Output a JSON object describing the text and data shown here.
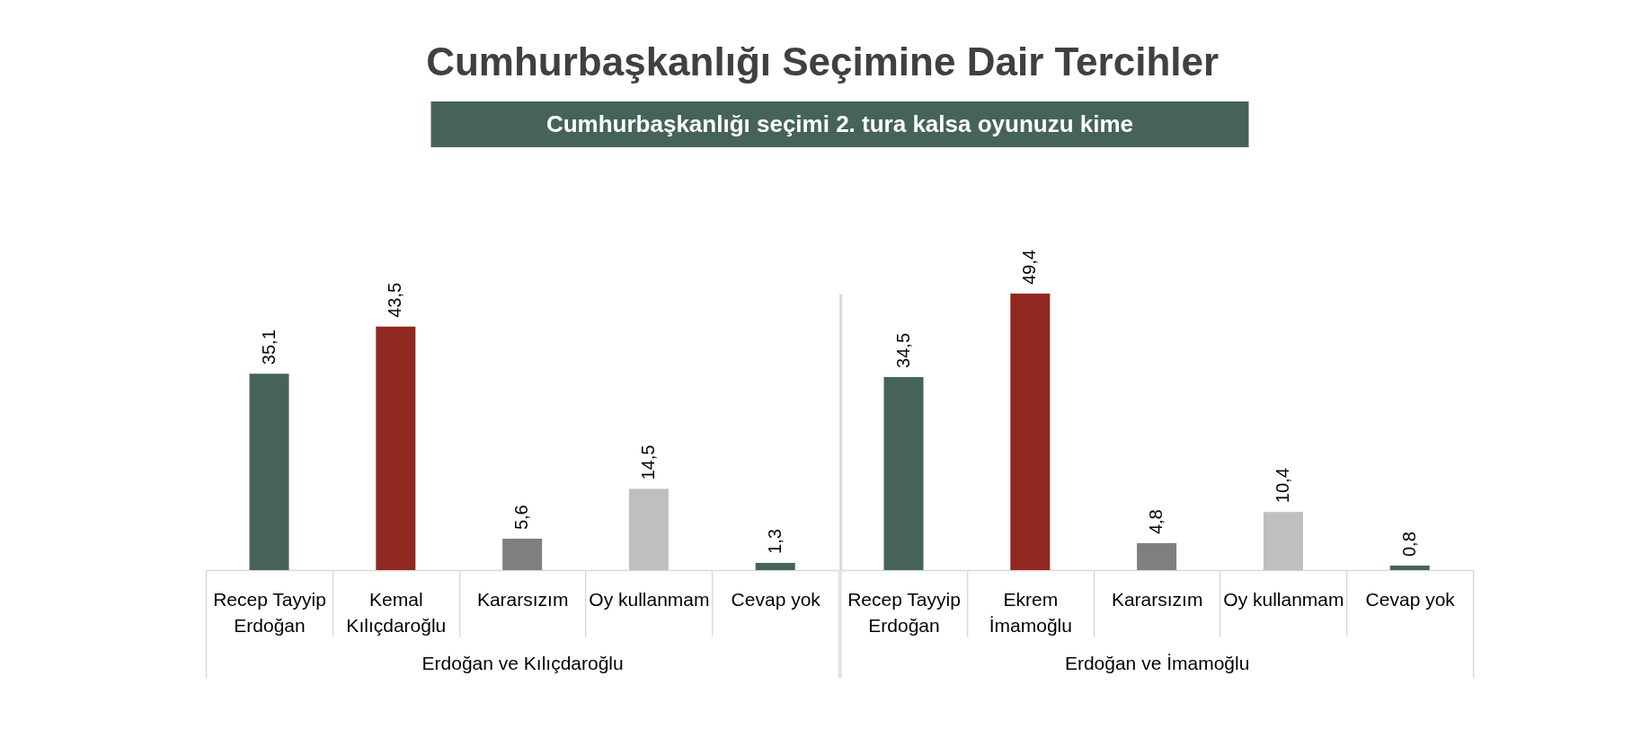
{
  "chart_data": [
    {
      "type": "bar",
      "title": "Cumhurbaşkanlığı Seçimine Dair Tercihler",
      "subtitle": "Cumhurbaşkanlığı seçimi 2. tura kalsa oyunuzu kime",
      "xlabel": "Erdoğan ve Kılıçdaroğlu",
      "categories": [
        "Recep Tayyip Erdoğan",
        "Kemal Kılıçdaroğlu",
        "Kararsızım",
        "Oy kullanmam",
        "Cevap yok"
      ],
      "values": [
        35.1,
        43.5,
        5.6,
        14.5,
        1.3
      ],
      "colors": [
        "#46635a",
        "#922822",
        "#7f7f7f",
        "#bfbfbf",
        "#46635a"
      ],
      "value_labels": [
        "35,1",
        "43,5",
        "5,6",
        "14,5",
        "1,3"
      ]
    },
    {
      "type": "bar",
      "xlabel": "Erdoğan ve İmamoğlu",
      "categories": [
        "Recep Tayyip Erdoğan",
        "Ekrem İmamoğlu",
        "Kararsızım",
        "Oy kullanmam",
        "Cevap yok"
      ],
      "values": [
        34.5,
        49.4,
        4.8,
        10.4,
        0.8
      ],
      "colors": [
        "#46635a",
        "#922822",
        "#7f7f7f",
        "#bfbfbf",
        "#46635a"
      ],
      "value_labels": [
        "34,5",
        "49,4",
        "4,8",
        "10,4",
        "0,8"
      ]
    }
  ]
}
